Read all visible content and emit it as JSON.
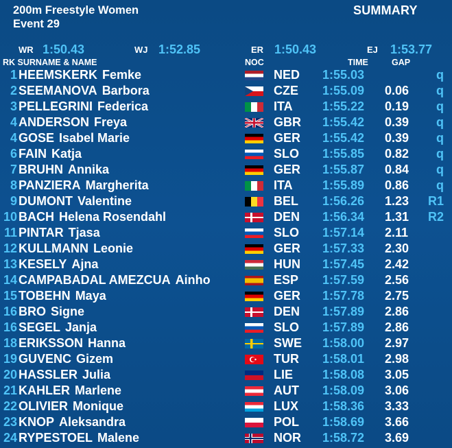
{
  "header": {
    "title": "200m Freestyle Women",
    "event": "Event 29",
    "summary": "SUMMARY"
  },
  "records": {
    "wr_label": "WR",
    "wr_value": "1:50.43",
    "wj_label": "WJ",
    "wj_value": "1:52.85",
    "er_label": "ER",
    "er_value": "1:50.43",
    "ej_label": "EJ",
    "ej_value": "1:53.77"
  },
  "columns": {
    "rk_name": "RK SURNAME & NAME",
    "noc": "NOC",
    "time": "TIME",
    "gap": "GAP"
  },
  "rows": [
    {
      "rank": "1",
      "surname": "HEEMSKERK",
      "firstname": "Femke",
      "noc": "NED",
      "time": "1:55.03",
      "gap": "",
      "q": "q",
      "flag": "ned"
    },
    {
      "rank": "2",
      "surname": "SEEMANOVA",
      "firstname": "Barbora",
      "noc": "CZE",
      "time": "1:55.09",
      "gap": "0.06",
      "q": "q",
      "flag": "cze"
    },
    {
      "rank": "3",
      "surname": "PELLEGRINI",
      "firstname": "Federica",
      "noc": "ITA",
      "time": "1:55.22",
      "gap": "0.19",
      "q": "q",
      "flag": "ita"
    },
    {
      "rank": "4",
      "surname": "ANDERSON",
      "firstname": "Freya",
      "noc": "GBR",
      "time": "1:55.42",
      "gap": "0.39",
      "q": "q",
      "flag": "gbr"
    },
    {
      "rank": "4",
      "surname": "GOSE",
      "firstname": "Isabel Marie",
      "noc": "GER",
      "time": "1:55.42",
      "gap": "0.39",
      "q": "q",
      "flag": "ger"
    },
    {
      "rank": "6",
      "surname": "FAIN",
      "firstname": "Katja",
      "noc": "SLO",
      "time": "1:55.85",
      "gap": "0.82",
      "q": "q",
      "flag": "slo"
    },
    {
      "rank": "7",
      "surname": "BRUHN",
      "firstname": "Annika",
      "noc": "GER",
      "time": "1:55.87",
      "gap": "0.84",
      "q": "q",
      "flag": "ger"
    },
    {
      "rank": "8",
      "surname": "PANZIERA",
      "firstname": "Margherita",
      "noc": "ITA",
      "time": "1:55.89",
      "gap": "0.86",
      "q": "q",
      "flag": "ita"
    },
    {
      "rank": "9",
      "surname": "DUMONT",
      "firstname": "Valentine",
      "noc": "BEL",
      "time": "1:56.26",
      "gap": "1.23",
      "q": "R1",
      "flag": "bel"
    },
    {
      "rank": "10",
      "surname": "BACH",
      "firstname": "Helena Rosendahl",
      "noc": "DEN",
      "time": "1:56.34",
      "gap": "1.31",
      "q": "R2",
      "flag": "den"
    },
    {
      "rank": "11",
      "surname": "PINTAR",
      "firstname": "Tjasa",
      "noc": "SLO",
      "time": "1:57.14",
      "gap": "2.11",
      "q": "",
      "flag": "slo"
    },
    {
      "rank": "12",
      "surname": "KULLMANN",
      "firstname": "Leonie",
      "noc": "GER",
      "time": "1:57.33",
      "gap": "2.30",
      "q": "",
      "flag": "ger"
    },
    {
      "rank": "13",
      "surname": "KESELY",
      "firstname": "Ajna",
      "noc": "HUN",
      "time": "1:57.45",
      "gap": "2.42",
      "q": "",
      "flag": "hun"
    },
    {
      "rank": "14",
      "surname": "CAMPABADAL AMEZCUA",
      "firstname": "Ainho",
      "noc": "ESP",
      "time": "1:57.59",
      "gap": "2.56",
      "q": "",
      "flag": "esp"
    },
    {
      "rank": "15",
      "surname": "TOBEHN",
      "firstname": "Maya",
      "noc": "GER",
      "time": "1:57.78",
      "gap": "2.75",
      "q": "",
      "flag": "ger"
    },
    {
      "rank": "16",
      "surname": "BRO",
      "firstname": "Signe",
      "noc": "DEN",
      "time": "1:57.89",
      "gap": "2.86",
      "q": "",
      "flag": "den"
    },
    {
      "rank": "16",
      "surname": "SEGEL",
      "firstname": "Janja",
      "noc": "SLO",
      "time": "1:57.89",
      "gap": "2.86",
      "q": "",
      "flag": "slo"
    },
    {
      "rank": "18",
      "surname": "ERIKSSON",
      "firstname": "Hanna",
      "noc": "SWE",
      "time": "1:58.00",
      "gap": "2.97",
      "q": "",
      "flag": "swe"
    },
    {
      "rank": "19",
      "surname": "GUVENC",
      "firstname": "Gizem",
      "noc": "TUR",
      "time": "1:58.01",
      "gap": "2.98",
      "q": "",
      "flag": "tur"
    },
    {
      "rank": "20",
      "surname": "HASSLER",
      "firstname": "Julia",
      "noc": "LIE",
      "time": "1:58.08",
      "gap": "3.05",
      "q": "",
      "flag": "lie"
    },
    {
      "rank": "21",
      "surname": "KAHLER",
      "firstname": "Marlene",
      "noc": "AUT",
      "time": "1:58.09",
      "gap": "3.06",
      "q": "",
      "flag": "aut"
    },
    {
      "rank": "22",
      "surname": "OLIVIER",
      "firstname": "Monique",
      "noc": "LUX",
      "time": "1:58.36",
      "gap": "3.33",
      "q": "",
      "flag": "lux"
    },
    {
      "rank": "23",
      "surname": "KNOP",
      "firstname": "Aleksandra",
      "noc": "POL",
      "time": "1:58.69",
      "gap": "3.66",
      "q": "",
      "flag": "pol"
    },
    {
      "rank": "24",
      "surname": "RYPESTOEL",
      "firstname": "Malene",
      "noc": "NOR",
      "time": "1:58.72",
      "gap": "3.69",
      "q": "",
      "flag": "nor"
    }
  ],
  "colors": {
    "background": "#0b4a84",
    "accent": "#4fc3f7",
    "text": "#ffffff"
  }
}
